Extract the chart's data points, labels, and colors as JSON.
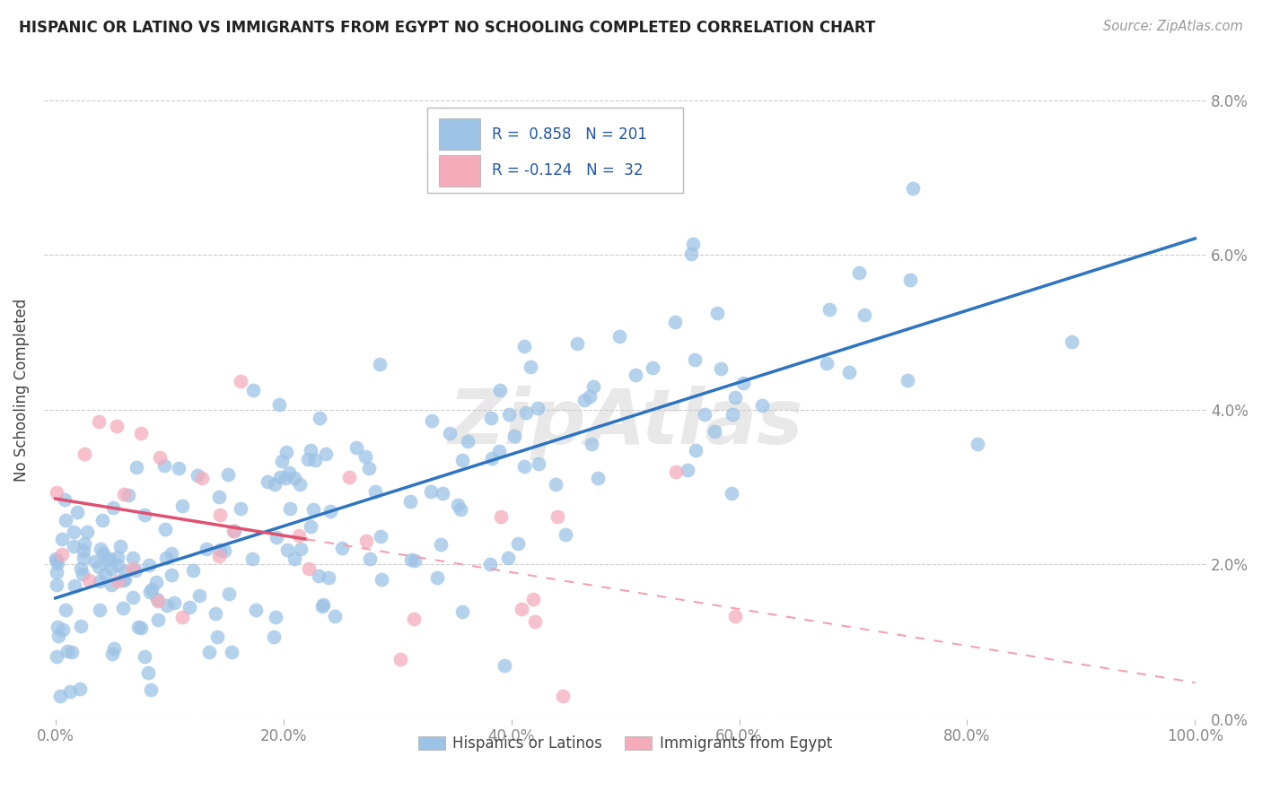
{
  "title": "HISPANIC OR LATINO VS IMMIGRANTS FROM EGYPT NO SCHOOLING COMPLETED CORRELATION CHART",
  "source": "Source: ZipAtlas.com",
  "ylabel": "No Schooling Completed",
  "legend_label1": "Hispanics or Latinos",
  "legend_label2": "Immigrants from Egypt",
  "R1": 0.858,
  "N1": 201,
  "R2": -0.124,
  "N2": 32,
  "blue_color": "#9dc3e6",
  "pink_color": "#f4acbb",
  "blue_line_color": "#2e74c0",
  "pink_line_color": "#e05070",
  "pink_dash_color": "#f4a0b0",
  "xlim": [
    0.0,
    1.0
  ],
  "ylim": [
    0.0,
    0.085
  ],
  "yticks": [
    0.0,
    0.02,
    0.04,
    0.06,
    0.08
  ],
  "xticks": [
    0.0,
    0.2,
    0.4,
    0.6,
    0.8,
    1.0
  ],
  "blue_seed": 42,
  "pink_seed": 77,
  "grid_color": "#cccccc",
  "tick_color": "#888888"
}
